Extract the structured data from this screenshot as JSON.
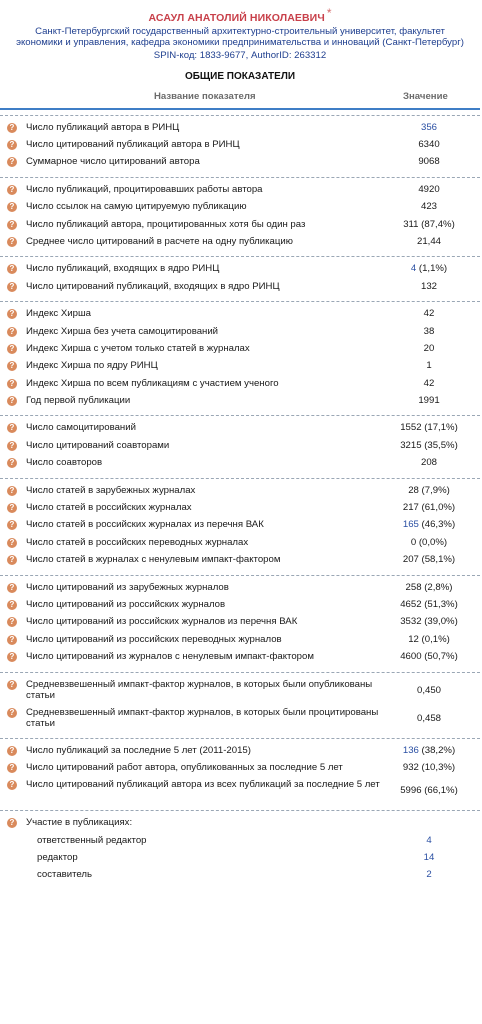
{
  "header": {
    "author": "АСАУЛ АНАТОЛИЙ НИКОЛАЕВИЧ",
    "star": "*",
    "affiliation": "Санкт-Петербургский государственный архитектурно-строительный университет, факультет экономики и управления, кафедра экономики предпринимательства и инноваций (Санкт-Петербург)",
    "spin_label": "SPIN-код:",
    "spin_value": "1833-9677",
    "author_id_label": ", AuthorID:",
    "author_id_value": "263312"
  },
  "section_title": "ОБЩИЕ ПОКАЗАТЕЛИ",
  "table_header": {
    "name": "Название показателя",
    "value": "Значение"
  },
  "groups": [
    {
      "rows": [
        {
          "label": "Число публикаций автора в РИНЦ",
          "value": "356",
          "link": true
        },
        {
          "label": "Число цитирований публикаций автора в РИНЦ",
          "value": "6340"
        },
        {
          "label": "Суммарное число цитирований автора",
          "value": "9068"
        }
      ]
    },
    {
      "rows": [
        {
          "label": "Число публикаций, процитировавших работы автора",
          "value": "4920"
        },
        {
          "label": "Число ссылок на самую цитируемую публикацию",
          "value": "423"
        },
        {
          "label": "Число публикаций автора, процитированных хотя бы один раз",
          "value": "311 (87,4%)"
        },
        {
          "label": "Среднее число цитирований в расчете на одну публикацию",
          "value": "21,44"
        }
      ]
    },
    {
      "rows": [
        {
          "label": "Число публикаций, входящих в ядро РИНЦ",
          "value": "4",
          "value_suffix": " (1,1%)",
          "link": true
        },
        {
          "label": "Число цитирований публикаций, входящих в ядро РИНЦ",
          "value": "132"
        }
      ]
    },
    {
      "rows": [
        {
          "label": "Индекс Хирша",
          "value": "42"
        },
        {
          "label": "Индекс Хирша без учета самоцитирований",
          "value": "38"
        },
        {
          "label": "Индекс Хирша с учетом только статей в журналах",
          "value": "20"
        },
        {
          "label": "Индекс Хирша по ядру РИНЦ",
          "value": "1"
        },
        {
          "label": "Индекс Хирша по всем публикациям с участием ученого",
          "value": "42"
        },
        {
          "label": "Год первой публикации",
          "value": "1991"
        }
      ]
    },
    {
      "rows": [
        {
          "label": "Число самоцитирований",
          "value": "1552 (17,1%)"
        },
        {
          "label": "Число цитирований соавторами",
          "value": "3215 (35,5%)"
        },
        {
          "label": "Число соавторов",
          "value": "208"
        }
      ]
    },
    {
      "rows": [
        {
          "label": "Число статей в зарубежных журналах",
          "value": "28 (7,9%)"
        },
        {
          "label": "Число статей в российских журналах",
          "value": "217 (61,0%)"
        },
        {
          "label": "Число статей в российских журналах из перечня ВАК",
          "value": "165",
          "value_suffix": " (46,3%)",
          "link": true
        },
        {
          "label": "Число статей в российских переводных журналах",
          "value": "0 (0,0%)"
        },
        {
          "label": "Число статей в журналах с ненулевым импакт-фактором",
          "value": "207 (58,1%)"
        }
      ]
    },
    {
      "rows": [
        {
          "label": "Число цитирований из зарубежных журналов",
          "value": "258 (2,8%)"
        },
        {
          "label": "Число цитирований из российских журналов",
          "value": "4652 (51,3%)"
        },
        {
          "label": "Число цитирований из российских журналов из перечня ВАК",
          "value": "3532 (39,0%)"
        },
        {
          "label": "Число цитирований из российских переводных журналов",
          "value": "12 (0,1%)"
        },
        {
          "label": "Число цитирований из журналов с ненулевым импакт-фактором",
          "value": "4600 (50,7%)"
        }
      ]
    },
    {
      "tall": true,
      "rows": [
        {
          "label": "Средневзвешенный импакт-фактор журналов, в которых были опубликованы статьи",
          "value": "0,450"
        },
        {
          "label": "Средневзвешенный импакт-фактор журналов, в которых были процитированы статьи",
          "value": "0,458"
        }
      ]
    },
    {
      "rows": [
        {
          "label": "Число публикаций за последние 5 лет (2011-2015)",
          "value": "136",
          "value_suffix": " (38,2%)",
          "link": true
        },
        {
          "label": "Число цитирований работ автора, опубликованных за последние 5 лет",
          "value": "932 (10,3%)"
        },
        {
          "label": "Число цитирований публикаций автора из всех публикаций за последние 5 лет",
          "value": "5996 (66,1%)",
          "tall": true
        }
      ]
    }
  ],
  "participation": {
    "label": "Участие в публикациях:",
    "items": [
      {
        "label": "ответственный редактор",
        "value": "4"
      },
      {
        "label": "редактор",
        "value": "14"
      },
      {
        "label": "составитель",
        "value": "2"
      }
    ]
  },
  "help_icon": "question-icon",
  "colors": {
    "author": "#c8404a",
    "link": "#2a4fa3",
    "header_rule": "#3f7ec6",
    "help_icon": "#d98a5c"
  }
}
